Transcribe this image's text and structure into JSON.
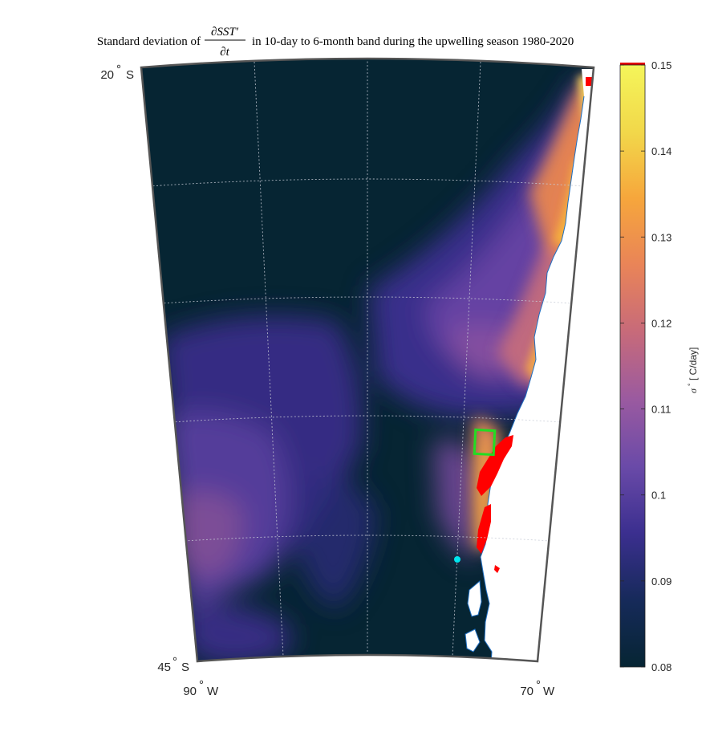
{
  "chart_data": {
    "type": "heatmap",
    "title_prefix": "Standard deviation of",
    "title_fraction_numerator": "∂SST′",
    "title_fraction_denominator": "∂t",
    "title_suffix": "in 10-day to 6-month band during the upwelling season 1980-2020",
    "map_labels": {
      "lat_north": "20",
      "lat_south": "45",
      "lon_west": "90",
      "lon_east": "70",
      "lat_hemisphere": "S",
      "lon_hemisphere": "W",
      "degree_mark": "°"
    },
    "lat_range": [
      -45,
      -20
    ],
    "lon_range": [
      -90,
      -70
    ],
    "colorbar": {
      "min": 0.08,
      "max": 0.15,
      "ticks": [
        "0.08",
        "0.09",
        "0.1",
        "0.11",
        "0.12",
        "0.13",
        "0.14",
        "0.15"
      ],
      "label_sigma": "σ",
      "label_units": "[ C/day]",
      "over_color": "#e00000",
      "colormap": [
        "#062533",
        "#162a5a",
        "#3b2f8f",
        "#6a4aa8",
        "#9a5aa0",
        "#c76a7a",
        "#e98458",
        "#f6a63c",
        "#f2d84a",
        "#f4f55a"
      ]
    },
    "graticule": {
      "grid": true,
      "lat_step": 5,
      "lon_step": 5
    },
    "markers": {
      "box": {
        "color": "#22dd22",
        "lat_range": [
          -37.1,
          -36.1
        ],
        "lon_range": [
          -73.5,
          -72.5
        ]
      },
      "point": {
        "color": "#00e5ee",
        "lat": -40.9,
        "lon": -73.8
      },
      "exceed_regions_color": "#ff0000"
    }
  }
}
